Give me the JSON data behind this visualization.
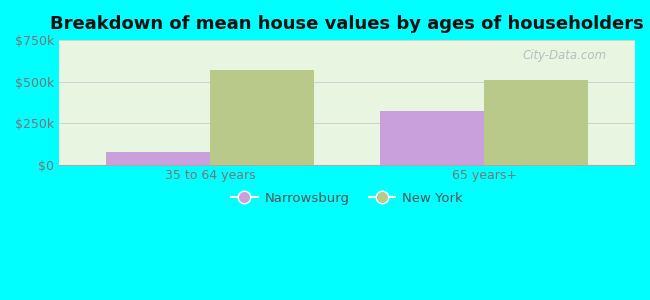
{
  "title": "Breakdown of mean house values by ages of householders",
  "categories": [
    "35 to 64 years",
    "65 years+"
  ],
  "narrowsburg_values": [
    75000,
    325000
  ],
  "newyork_values": [
    570000,
    510000
  ],
  "narrowsburg_color": "#c9a0dc",
  "newyork_color": "#b8c98a",
  "ylim": [
    0,
    750000
  ],
  "yticks": [
    0,
    250000,
    500000,
    750000
  ],
  "ytick_labels": [
    "$0",
    "$250k",
    "$500k",
    "$750k"
  ],
  "background_color": "#00ffff",
  "plot_bg_color": "#e8f5e0",
  "legend_labels": [
    "Narrowsburg",
    "New York"
  ],
  "bar_width": 0.38,
  "title_fontsize": 13,
  "tick_fontsize": 9,
  "watermark": "City-Data.com"
}
